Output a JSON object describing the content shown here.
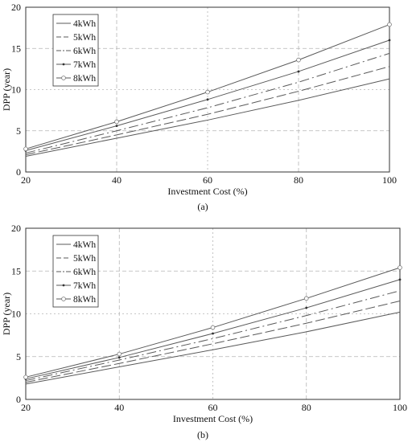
{
  "chart_data": [
    {
      "type": "line",
      "panel_label": "(a)",
      "xlabel": "Investment Cost (%)",
      "ylabel": "DPP (year)",
      "xlim": [
        20,
        100
      ],
      "ylim": [
        0,
        20
      ],
      "x_ticks": [
        "20",
        "40",
        "60",
        "80",
        "100"
      ],
      "y_ticks": [
        "0",
        "5",
        "10",
        "15",
        "20"
      ],
      "grid": true,
      "legend_position": "top-left",
      "x": [
        20,
        40,
        60,
        80,
        100
      ],
      "series": [
        {
          "name": "4kWh",
          "values": [
            1.9,
            4.1,
            6.3,
            8.7,
            11.3
          ],
          "style": "solid"
        },
        {
          "name": "5kWh",
          "values": [
            2.1,
            4.5,
            7.0,
            9.8,
            12.8
          ],
          "style": "dashed"
        },
        {
          "name": "6kWh",
          "values": [
            2.3,
            5.0,
            7.8,
            10.9,
            14.4
          ],
          "style": "dashdot"
        },
        {
          "name": "7kWh",
          "values": [
            2.6,
            5.6,
            8.8,
            12.2,
            16.0
          ],
          "style": "solid-dot"
        },
        {
          "name": "8kWh",
          "values": [
            2.8,
            6.1,
            9.7,
            13.6,
            17.9
          ],
          "style": "solid-circle"
        }
      ]
    },
    {
      "type": "line",
      "panel_label": "(b)",
      "xlabel": "Investment Cost (%)",
      "ylabel": "DPP (year)",
      "xlim": [
        20,
        100
      ],
      "ylim": [
        0,
        20
      ],
      "x_ticks": [
        "20",
        "40",
        "60",
        "80",
        "100"
      ],
      "y_ticks": [
        "0",
        "5",
        "10",
        "15",
        "20"
      ],
      "grid": true,
      "legend_position": "top-left",
      "x": [
        20,
        40,
        60,
        80,
        100
      ],
      "series": [
        {
          "name": "4kWh",
          "values": [
            1.8,
            3.8,
            5.8,
            7.9,
            10.2
          ],
          "style": "solid"
        },
        {
          "name": "5kWh",
          "values": [
            2.0,
            4.2,
            6.5,
            8.9,
            11.5
          ],
          "style": "dashed"
        },
        {
          "name": "6kWh",
          "values": [
            2.2,
            4.6,
            7.1,
            9.8,
            12.7
          ],
          "style": "dashdot"
        },
        {
          "name": "7kWh",
          "values": [
            2.4,
            4.9,
            7.7,
            10.7,
            14.0
          ],
          "style": "solid-dot"
        },
        {
          "name": "8kWh",
          "values": [
            2.6,
            5.3,
            8.4,
            11.8,
            15.4
          ],
          "style": "solid-circle"
        }
      ]
    }
  ]
}
